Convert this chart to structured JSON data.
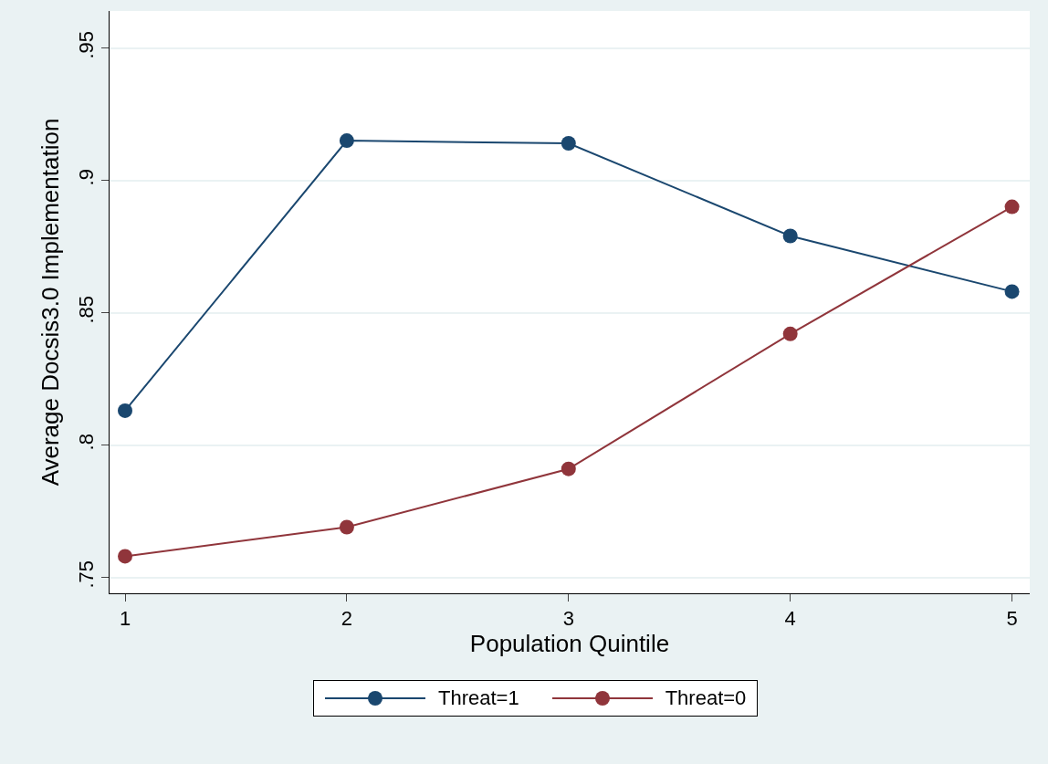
{
  "chart_data": {
    "type": "line",
    "xlabel": "Population Quintile",
    "ylabel": "Average Docsis3.0 Implementation",
    "x": [
      1,
      2,
      3,
      4,
      5
    ],
    "series": [
      {
        "name": "Threat=1",
        "color": "#1a476f",
        "values": [
          0.813,
          0.915,
          0.914,
          0.879,
          0.858
        ]
      },
      {
        "name": "Threat=0",
        "color": "#90353b",
        "values": [
          0.758,
          0.769,
          0.791,
          0.842,
          0.89
        ]
      }
    ],
    "xlim": [
      0.93,
      5.08
    ],
    "xticks": [
      1,
      2,
      3,
      4,
      5
    ],
    "ylim": [
      0.744,
      0.964
    ],
    "yticks": [
      {
        "value": 0.75,
        "label": ".75"
      },
      {
        "value": 0.8,
        "label": ".8"
      },
      {
        "value": 0.85,
        "label": ".85"
      },
      {
        "value": 0.9,
        "label": ".9"
      },
      {
        "value": 0.95,
        "label": ".95"
      }
    ],
    "grid": "y",
    "legend": "bottom",
    "marker": "circle",
    "line_style": "solid"
  }
}
